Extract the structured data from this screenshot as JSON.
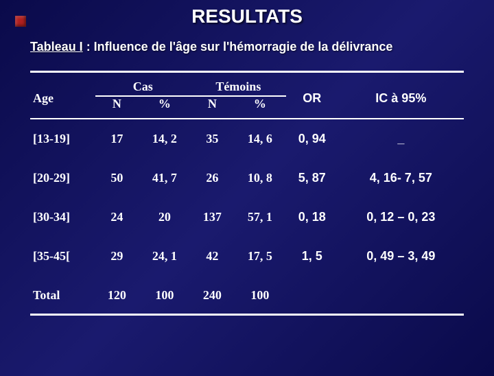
{
  "title": "RESULTATS",
  "subtitle_prefix": "Tableau I",
  "subtitle_rest": " : Influence de l'âge sur l'hémorragie de la délivrance",
  "headers": {
    "age": "Age",
    "cas": "Cas",
    "temoins": "Témoins",
    "or": "OR",
    "ci": "IC à 95%",
    "n": "N",
    "pct": "%"
  },
  "rows": [
    {
      "label": "[13-19]",
      "cas_n": "17",
      "cas_pct": "14, 2",
      "tem_n": "35",
      "tem_pct": "14, 6",
      "or": "0, 94",
      "ci": "_"
    },
    {
      "label": "[20-29]",
      "cas_n": "50",
      "cas_pct": "41, 7",
      "tem_n": "26",
      "tem_pct": "10, 8",
      "or": "5, 87",
      "ci": "4, 16- 7, 57"
    },
    {
      "label": "[30-34]",
      "cas_n": "24",
      "cas_pct": "20",
      "tem_n": "137",
      "tem_pct": "57, 1",
      "or": "0, 18",
      "ci": "0, 12 – 0, 23"
    },
    {
      "label": "[35-45[",
      "cas_n": "29",
      "cas_pct": "24, 1",
      "tem_n": "42",
      "tem_pct": "17, 5",
      "or": "1, 5",
      "ci": "0, 49 – 3, 49"
    },
    {
      "label": "Total",
      "cas_n": "120",
      "cas_pct": "100",
      "tem_n": "240",
      "tem_pct": "100",
      "or": "",
      "ci": ""
    }
  ],
  "style": {
    "background_gradient": [
      "#0a0a4a",
      "#1a1a6e",
      "#0a0a4a"
    ],
    "text_color": "#ffffff",
    "title_font": "Arial",
    "body_font": "Times New Roman",
    "border_color": "#ffffff"
  },
  "col_widths": {
    "label": "15%",
    "cas_n": "10%",
    "cas_pct": "12%",
    "tem_n": "10%",
    "tem_pct": "12%",
    "or": "12%",
    "ci": "29%"
  }
}
